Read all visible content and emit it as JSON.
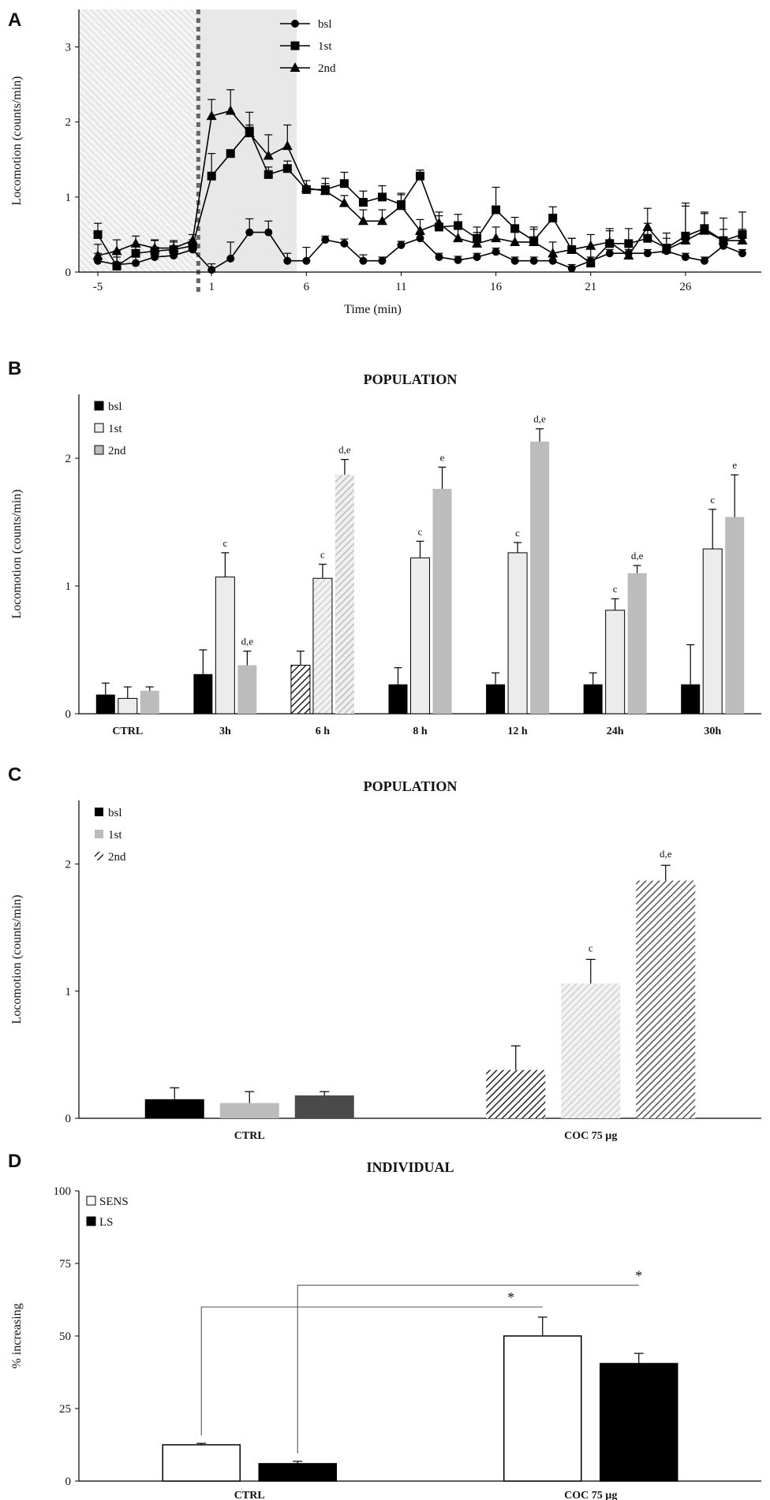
{
  "figure": {
    "panel_letters": [
      "A",
      "B",
      "C",
      "D"
    ]
  },
  "colors": {
    "black": "#000000",
    "light_gray": "#ececec",
    "mid_gray": "#bcbcbc",
    "dark_gray": "#4a4a4a",
    "shade": "#e8e8e8"
  },
  "chart_data": [
    {
      "id": "A",
      "type": "line",
      "title": "",
      "xlabel": "Time (min)",
      "ylabel": "Locomotion (counts/min)",
      "xlim": [
        -6,
        30
      ],
      "ylim": [
        0,
        3.5
      ],
      "x_ticks": [
        -5,
        1,
        6,
        11,
        16,
        21,
        26
      ],
      "y_ticks": [
        0,
        1,
        2,
        3
      ],
      "shaded_regions": [
        {
          "from": -6,
          "to": 0.3,
          "style": "hatched"
        },
        {
          "from": 0.3,
          "to": 5.5,
          "style": "solid"
        }
      ],
      "injection_marker_x": 0.3,
      "x": [
        -5,
        -4,
        -3,
        -2,
        -1,
        0,
        1,
        2,
        3,
        4,
        5,
        6,
        7,
        8,
        9,
        10,
        11,
        12,
        13,
        14,
        15,
        16,
        17,
        18,
        19,
        20,
        21,
        22,
        23,
        24,
        25,
        26,
        27,
        28,
        29
      ],
      "series": [
        {
          "name": "bsl",
          "marker": "circle",
          "values": [
            0.15,
            0.1,
            0.12,
            0.2,
            0.22,
            0.3,
            0.03,
            0.18,
            0.53,
            0.53,
            0.15,
            0.15,
            0.43,
            0.38,
            0.15,
            0.15,
            0.36,
            0.45,
            0.2,
            0.16,
            0.2,
            0.27,
            0.15,
            0.15,
            0.15,
            0.05,
            0.15,
            0.25,
            0.25,
            0.25,
            0.28,
            0.2,
            0.15,
            0.35,
            0.25
          ],
          "errors": [
            0.1,
            0.1,
            0.1,
            0.08,
            0.08,
            0.1,
            0.08,
            0.22,
            0.18,
            0.15,
            0.1,
            0.18,
            0.05,
            0.06,
            0.08,
            0.05,
            0.05,
            0.05,
            0.05,
            0.05,
            0.05,
            0.05,
            0.05,
            0.05,
            0.05,
            0.05,
            0.05,
            0.05,
            0.05,
            0.05,
            0.05,
            0.05,
            0.05,
            0.05,
            0.05
          ]
        },
        {
          "name": "1st",
          "marker": "square",
          "values": [
            0.5,
            0.08,
            0.25,
            0.28,
            0.3,
            0.35,
            1.28,
            1.58,
            1.88,
            1.3,
            1.38,
            1.1,
            1.1,
            1.18,
            0.93,
            1.0,
            0.9,
            1.28,
            0.6,
            0.62,
            0.45,
            0.83,
            0.58,
            0.42,
            0.72,
            0.3,
            0.12,
            0.38,
            0.38,
            0.45,
            0.32,
            0.48,
            0.58,
            0.42,
            0.5
          ],
          "errors": [
            0.15,
            0.2,
            0.1,
            0.15,
            0.1,
            0.08,
            0.3,
            0.05,
            0.08,
            0.1,
            0.1,
            0.05,
            0.15,
            0.15,
            0.15,
            0.15,
            0.15,
            0.08,
            0.15,
            0.15,
            0.15,
            0.3,
            0.15,
            0.15,
            0.15,
            0.15,
            0.2,
            0.2,
            0.2,
            0.2,
            0.2,
            0.4,
            0.2,
            0.3,
            0.3
          ]
        },
        {
          "name": "2nd",
          "marker": "triangle",
          "values": [
            0.22,
            0.28,
            0.38,
            0.32,
            0.32,
            0.42,
            2.08,
            2.15,
            1.85,
            1.55,
            1.68,
            1.12,
            1.08,
            0.92,
            0.68,
            0.68,
            0.88,
            0.55,
            0.65,
            0.45,
            0.38,
            0.45,
            0.4,
            0.4,
            0.25,
            0.3,
            0.35,
            0.4,
            0.22,
            0.6,
            0.3,
            0.42,
            0.55,
            0.42,
            0.42
          ],
          "errors": [
            0.15,
            0.15,
            0.1,
            0.1,
            0.1,
            0.08,
            0.22,
            0.28,
            0.28,
            0.28,
            0.28,
            0.1,
            0.1,
            0.1,
            0.15,
            0.15,
            0.15,
            0.15,
            0.15,
            0.2,
            0.15,
            0.15,
            0.15,
            0.2,
            0.15,
            0.15,
            0.15,
            0.15,
            0.15,
            0.25,
            0.15,
            0.5,
            0.25,
            0.15,
            0.15
          ]
        }
      ]
    },
    {
      "id": "B",
      "type": "bar",
      "title": "POPULATION",
      "xlabel": "",
      "ylabel": "Locomotion (counts/min)",
      "ylim": [
        0,
        2.5
      ],
      "y_ticks": [
        0,
        1,
        2
      ],
      "categories": [
        "CTRL",
        "3h",
        "6 h",
        "8 h",
        "12 h",
        "24h",
        "30h"
      ],
      "series": [
        {
          "name": "bsl",
          "values": [
            0.15,
            0.31,
            0.38,
            0.23,
            0.23,
            0.23,
            0.23
          ],
          "errors": [
            0.09,
            0.19,
            0.11,
            0.13,
            0.09,
            0.09,
            0.31
          ],
          "labels": [
            "",
            "",
            "",
            "",
            "",
            "",
            ""
          ]
        },
        {
          "name": "1st",
          "values": [
            0.12,
            1.07,
            1.06,
            1.22,
            1.26,
            0.81,
            1.29
          ],
          "errors": [
            0.09,
            0.19,
            0.11,
            0.13,
            0.08,
            0.09,
            0.31
          ],
          "labels": [
            "",
            "c",
            "c",
            "c",
            "c",
            "c",
            "c"
          ]
        },
        {
          "name": "2nd",
          "values": [
            0.18,
            0.38,
            1.87,
            1.76,
            2.13,
            1.1,
            1.54
          ],
          "errors": [
            0.03,
            0.11,
            0.12,
            0.17,
            0.1,
            0.06,
            0.33
          ],
          "labels": [
            "",
            "d,e",
            "d,e",
            "e",
            "d,e",
            "d,e",
            "e"
          ]
        }
      ],
      "hatched_category_index": 2
    },
    {
      "id": "C",
      "type": "bar",
      "title": "POPULATION",
      "xlabel": "",
      "ylabel": "Locomotion (counts/min)",
      "ylim": [
        0,
        2.5
      ],
      "y_ticks": [
        0,
        1,
        2
      ],
      "categories": [
        "CTRL",
        "COC 75 µg"
      ],
      "series": [
        {
          "name": "bsl",
          "values": [
            0.15,
            0.38
          ],
          "errors": [
            0.09,
            0.19
          ],
          "labels": [
            "",
            ""
          ]
        },
        {
          "name": "1st",
          "values": [
            0.12,
            1.06
          ],
          "errors": [
            0.09,
            0.19
          ],
          "labels": [
            "",
            "c"
          ]
        },
        {
          "name": "2nd",
          "values": [
            0.18,
            1.87
          ],
          "errors": [
            0.03,
            0.12
          ],
          "labels": [
            "",
            "d,e"
          ]
        }
      ]
    },
    {
      "id": "D",
      "type": "bar",
      "title": "INDIVIDUAL",
      "xlabel": "",
      "ylabel": "% increasing",
      "ylim": [
        0,
        100
      ],
      "y_ticks": [
        0,
        25,
        50,
        75,
        100
      ],
      "categories": [
        "CTRL",
        "COC 75 µg"
      ],
      "series": [
        {
          "name": "SENS",
          "values": [
            12.5,
            50
          ],
          "errors": [
            0.5,
            6.5
          ]
        },
        {
          "name": "LS",
          "values": [
            6,
            40.5
          ],
          "errors": [
            0.8,
            3.5
          ]
        }
      ],
      "significance": [
        {
          "from": "CTRL:SENS",
          "to": "COC 75 µg:SENS",
          "label": "*"
        },
        {
          "from": "CTRL:LS",
          "to": "COC 75 µg:LS",
          "label": "*"
        }
      ]
    }
  ]
}
